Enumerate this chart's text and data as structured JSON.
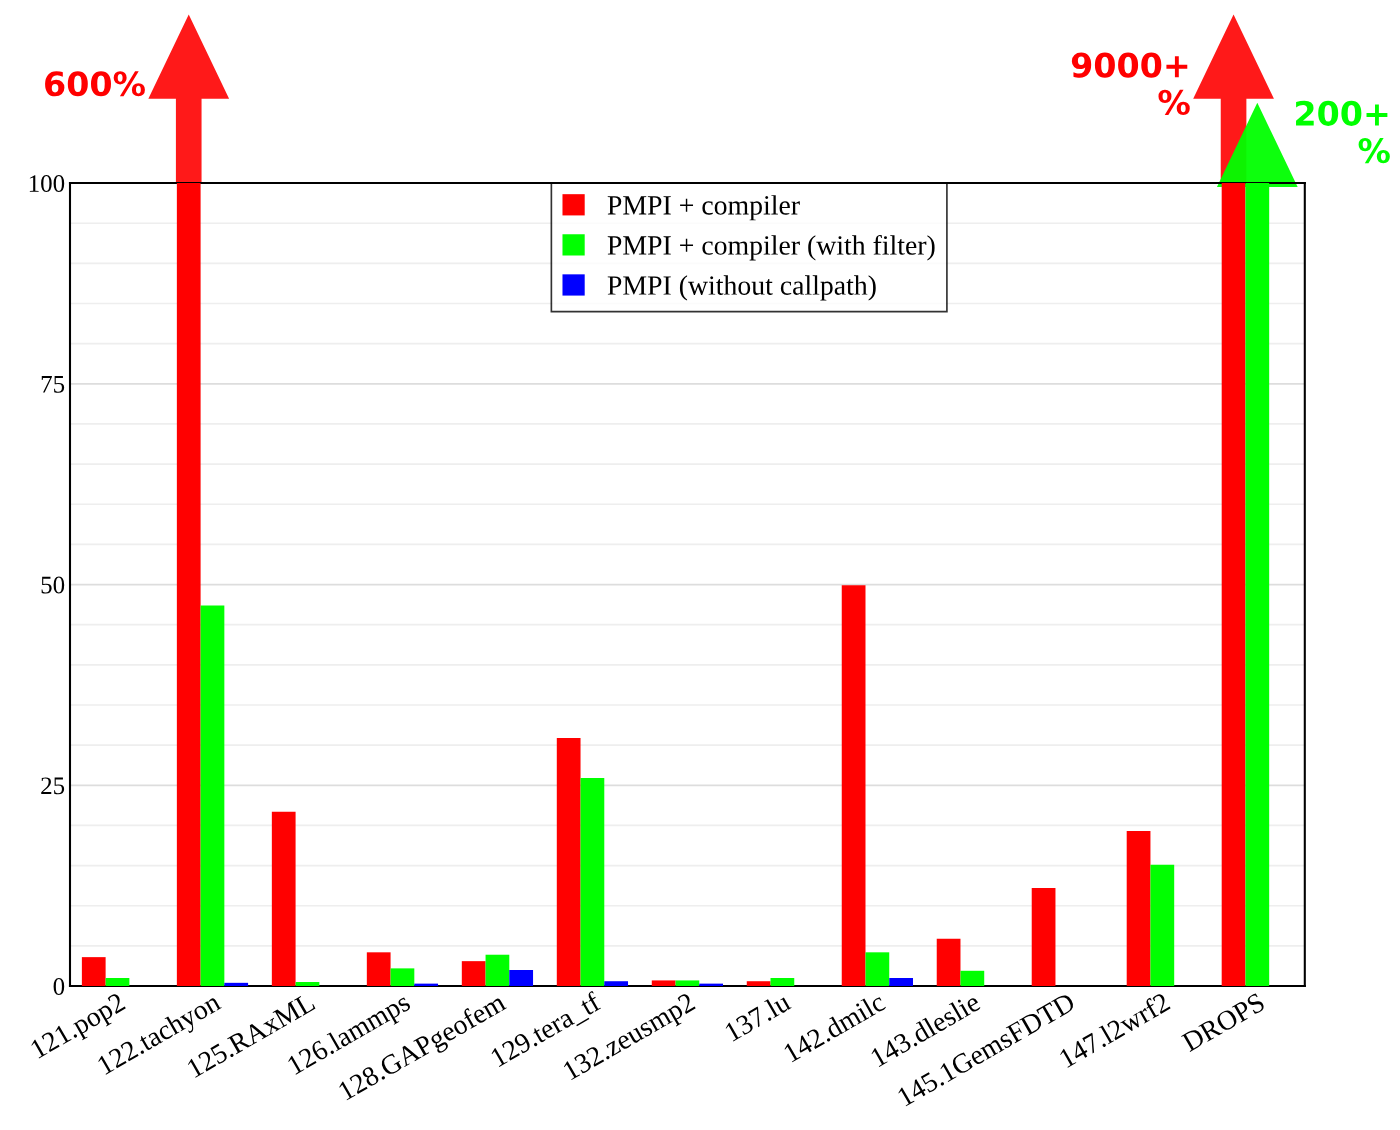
{
  "chart_data": {
    "type": "bar",
    "categories": [
      "121.pop2",
      "122.tachyon",
      "125.RAxML",
      "126.lammps",
      "128.GAPgeofem",
      "129.tera_tf",
      "132.zeusmp2",
      "137.lu",
      "142.dmilc",
      "143.dleslie",
      "145.1GemsFDTD",
      "147.l2wrf2",
      "DROPS"
    ],
    "series": [
      {
        "name": "PMPI + compiler",
        "color": "#ff0000",
        "values": [
          3.6,
          100,
          21.7,
          4.2,
          3.1,
          30.9,
          0.7,
          0.6,
          49.9,
          5.9,
          12.2,
          19.3,
          100
        ]
      },
      {
        "name": "PMPI + compiler (with filter)",
        "color": "#00ff00",
        "values": [
          1.0,
          47.4,
          0.5,
          2.2,
          3.9,
          25.9,
          0.7,
          1.0,
          4.2,
          1.9,
          null,
          15.1,
          100
        ]
      },
      {
        "name": "PMPI (without callpath)",
        "color": "#0000ff",
        "values": [
          null,
          0.4,
          null,
          0.3,
          2.0,
          0.6,
          0.3,
          null,
          1.0,
          null,
          null,
          null,
          null
        ]
      }
    ],
    "annotations": [
      "600%",
      "9000+\n%",
      "200+\n%"
    ],
    "ylim": [
      0,
      100
    ],
    "yticks": [
      0,
      {
        "value": 5,
        "label": null
      },
      {
        "value": 10,
        "label": null
      },
      {
        "value": 15,
        "label": null
      },
      {
        "value": 20,
        "label": null
      },
      25,
      {
        "value": 30,
        "label": null
      },
      {
        "value": 35,
        "label": null
      },
      {
        "value": 40,
        "label": null
      },
      {
        "value": 45,
        "label": null
      },
      50,
      {
        "value": 55,
        "label": null
      },
      {
        "value": 60,
        "label": null
      },
      {
        "value": 65,
        "label": null
      },
      {
        "value": 70,
        "label": null
      },
      75,
      {
        "value": 80,
        "label": null
      },
      {
        "value": 85,
        "label": null
      },
      {
        "value": 90,
        "label": null
      },
      {
        "value": 95,
        "label": null
      },
      100
    ],
    "grid": "y",
    "legend": "top"
  }
}
